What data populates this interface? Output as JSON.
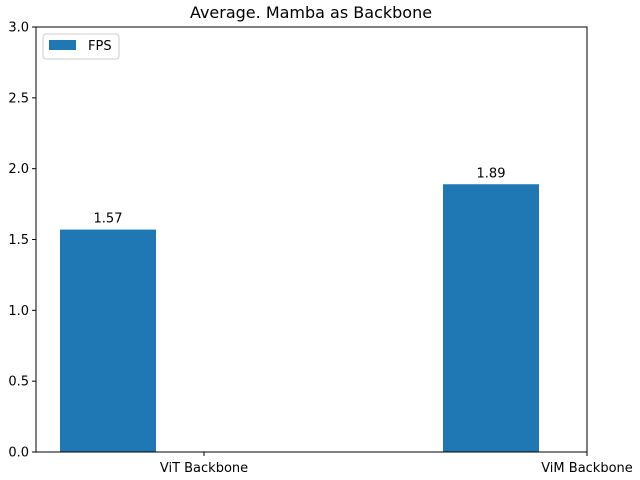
{
  "chart_data": {
    "type": "bar",
    "title": "Average. Mamba as Backbone",
    "xlabel": "",
    "ylabel": "",
    "categories": [
      "ViT Backbone",
      "ViM Backbone"
    ],
    "series": [
      {
        "name": "FPS",
        "values": [
          1.57,
          1.89
        ],
        "color": "#1f77b4"
      }
    ],
    "data_labels": [
      "1.57",
      "1.89"
    ],
    "ylim": [
      0,
      3.0
    ],
    "yticks": [
      "0.0",
      "0.5",
      "1.0",
      "1.5",
      "2.0",
      "2.5",
      "3.0"
    ],
    "grid": false,
    "legend_position": "top-left"
  }
}
